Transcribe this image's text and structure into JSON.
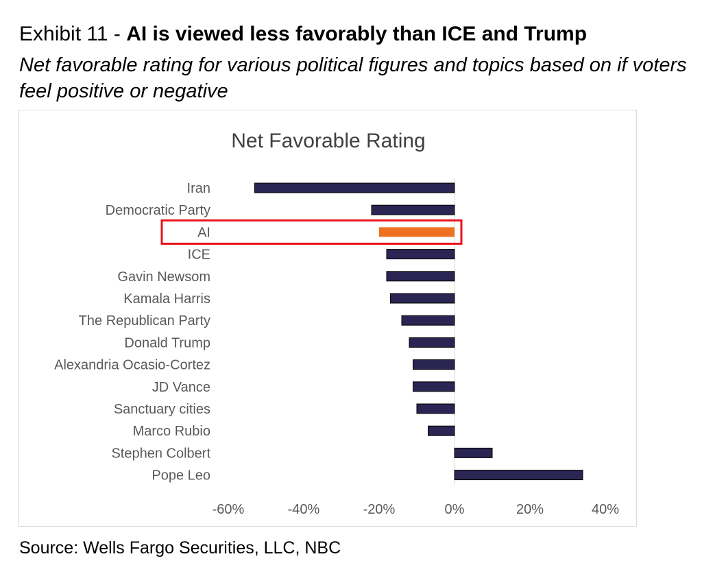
{
  "header": {
    "exhibit_label": "Exhibit 11 - ",
    "headline": "AI is viewed less favorably than ICE and Trump",
    "subtitle": "Net favorable rating for various political figures and topics based on if voters feel positive or negative"
  },
  "source": "Source: Wells Fargo Securities, LLC, NBC",
  "colors": {
    "bar": "#2a2553",
    "highlight_bar": "#ee7121",
    "highlight_box": "#e8131b",
    "axis_text": "#595959",
    "title_text": "#404040"
  },
  "chart_data": {
    "type": "bar",
    "orientation": "horizontal",
    "title": "Net Favorable Rating",
    "xlabel": "",
    "ylabel": "",
    "categories": [
      "Iran",
      "Democratic Party",
      "AI",
      "ICE",
      "Gavin Newsom",
      "Kamala Harris",
      "The Republican Party",
      "Donald Trump",
      "Alexandria Ocasio-Cortez",
      "JD Vance",
      "Sanctuary cities",
      "Marco Rubio",
      "Stephen Colbert",
      "Pope Leo"
    ],
    "values": [
      -53,
      -22,
      -20,
      -18,
      -18,
      -17,
      -14,
      -12,
      -11,
      -11,
      -10,
      -7,
      10,
      34
    ],
    "highlighted_category": "AI",
    "xlim": [
      -60,
      40
    ],
    "x_ticks": [
      -60,
      -40,
      -20,
      0,
      20,
      40
    ],
    "x_tick_labels": [
      "-60%",
      "-40%",
      "-20%",
      "0%",
      "20%",
      "40%"
    ],
    "legend": "none",
    "grid": false
  }
}
